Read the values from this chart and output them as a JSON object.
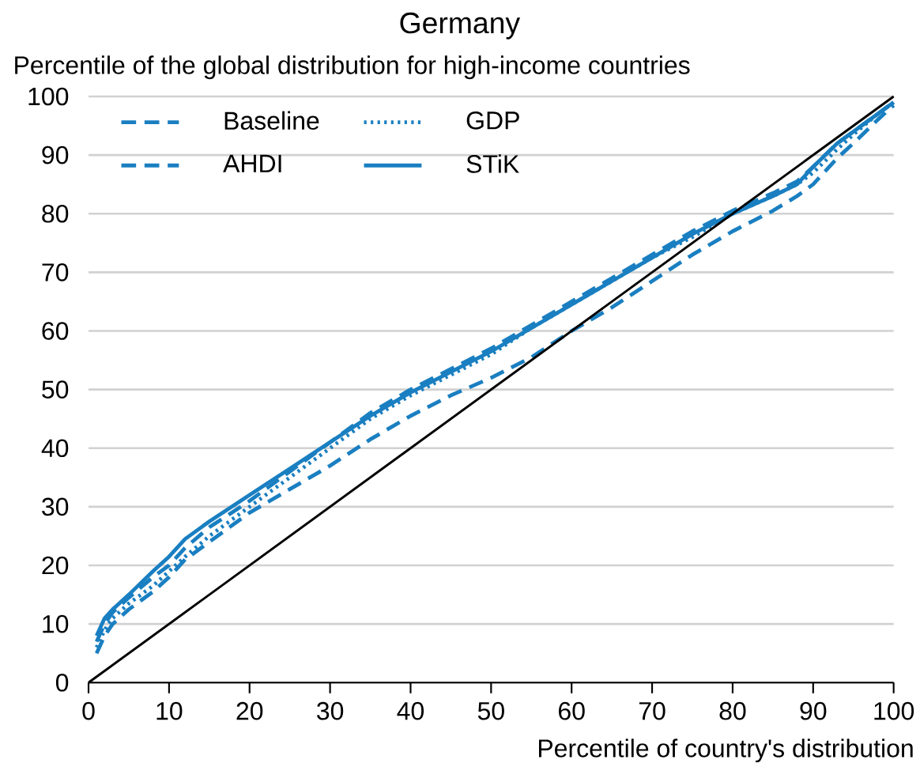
{
  "chart_data": {
    "type": "line",
    "title": "Germany",
    "ylabel": "Percentile of the global distribution for high-income countries",
    "xlabel": "Percentile of country's distribution",
    "x": [
      1,
      2,
      3,
      5,
      8,
      10,
      12,
      15,
      20,
      25,
      30,
      35,
      40,
      45,
      50,
      55,
      60,
      65,
      70,
      75,
      80,
      85,
      88,
      90,
      93,
      95,
      98,
      100
    ],
    "series": [
      {
        "name": "Baseline",
        "color": "#1a7fc1",
        "line_style": "dashed",
        "values": [
          5,
          8,
          10,
          12.5,
          15.5,
          18,
          21,
          24,
          29,
          33,
          37,
          41.5,
          45.5,
          49,
          52,
          55.5,
          60,
          64,
          68.5,
          73,
          77,
          80.5,
          83,
          85,
          89.5,
          92,
          96,
          98.5
        ]
      },
      {
        "name": "GDP",
        "color": "#1a7fc1",
        "line_style": "dotted",
        "values": [
          6,
          9,
          11,
          13.5,
          16.5,
          19,
          21.5,
          25,
          30,
          35,
          40,
          45,
          49,
          52.5,
          56,
          60.5,
          64.5,
          68.5,
          72.5,
          76,
          80,
          83,
          85,
          87,
          91,
          93.5,
          97,
          99
        ]
      },
      {
        "name": "AHDI",
        "color": "#1a7fc1",
        "line_style": "dashed",
        "values": [
          7,
          10,
          12,
          14.5,
          18,
          20,
          23,
          26.5,
          31,
          36,
          41,
          46,
          50,
          53.5,
          57,
          61,
          65,
          69,
          73,
          77,
          80.5,
          83.5,
          85.5,
          88,
          92,
          94,
          97,
          99
        ]
      },
      {
        "name": "STiK",
        "color": "#1a7fc1",
        "line_style": "solid",
        "values": [
          8,
          11,
          12.5,
          15,
          19,
          21.5,
          24.5,
          27.5,
          32,
          36.5,
          41,
          45.5,
          49.5,
          53,
          56.5,
          60.5,
          64.5,
          68.5,
          72.5,
          76.5,
          80,
          83,
          85,
          88,
          92,
          94,
          97,
          99
        ]
      },
      {
        "color": "#000000",
        "line_style": "solid",
        "x": [
          0,
          100
        ],
        "values": [
          0,
          100
        ]
      }
    ],
    "xlim": [
      0,
      100
    ],
    "ylim": [
      0,
      100
    ],
    "xticks": [
      0,
      10,
      20,
      30,
      40,
      50,
      60,
      70,
      80,
      90,
      100
    ],
    "yticks": [
      0,
      10,
      20,
      30,
      40,
      50,
      60,
      70,
      80,
      90,
      100
    ],
    "grid": "y",
    "legend": "top left",
    "marker": "none"
  }
}
